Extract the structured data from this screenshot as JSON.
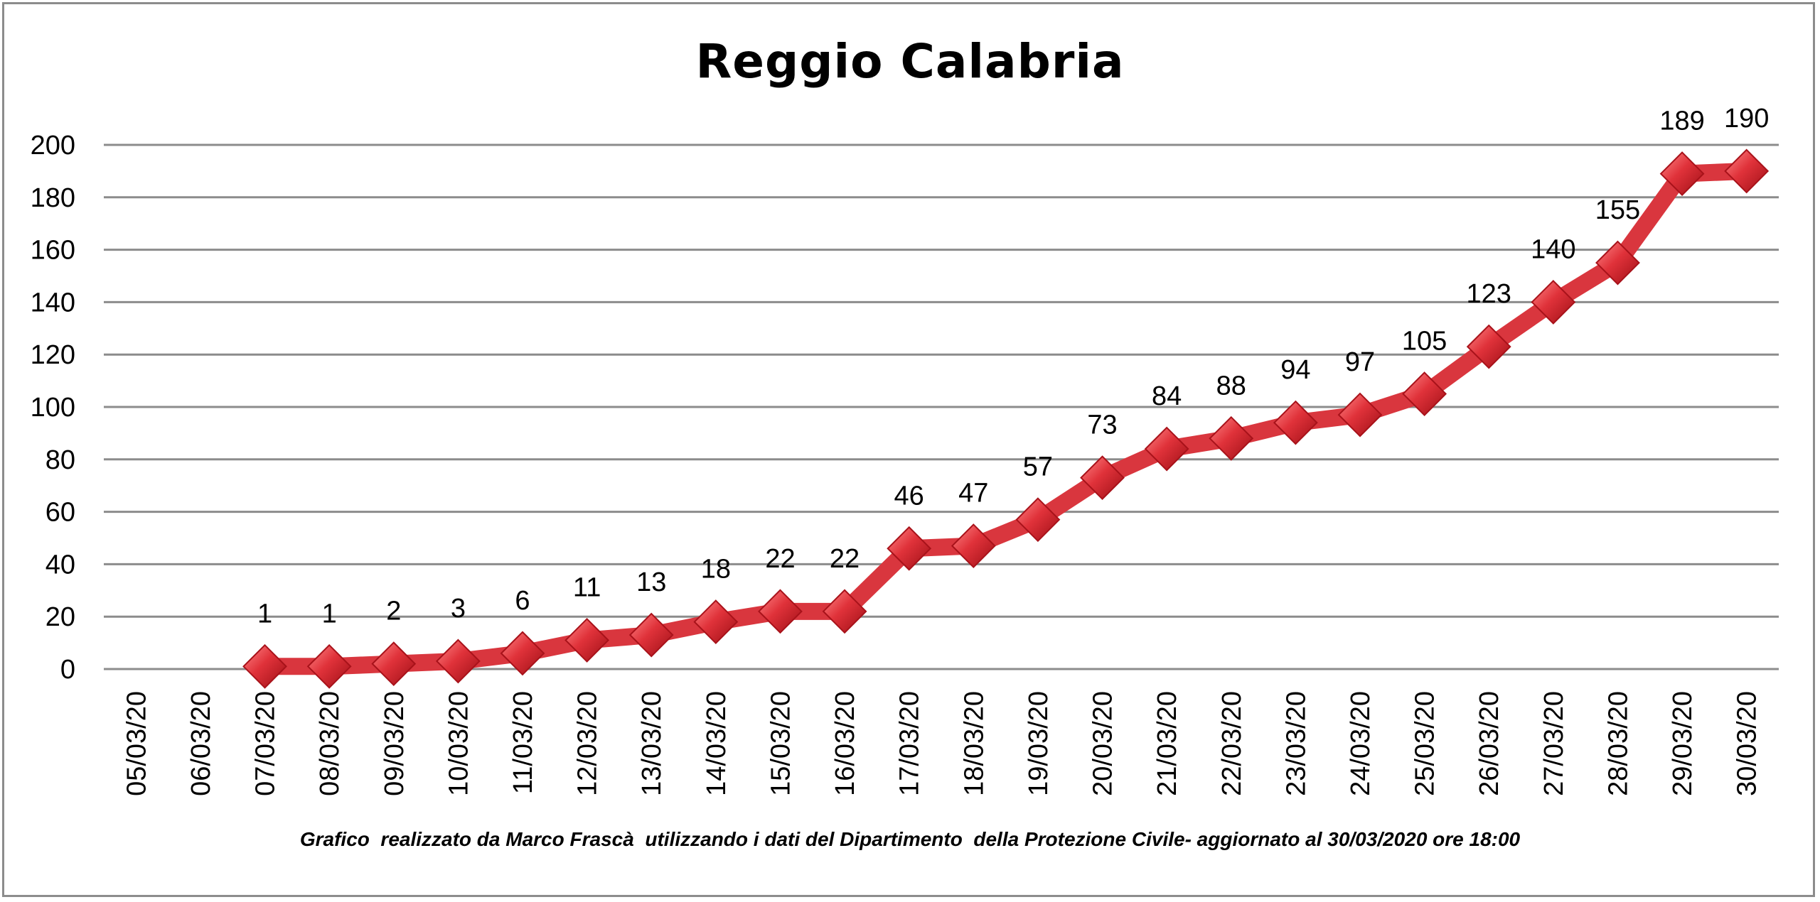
{
  "chart_data": {
    "type": "line",
    "title": "Reggio Calabria",
    "xlabel": "",
    "ylabel": "",
    "ylim": [
      0,
      200
    ],
    "yticks": [
      0,
      20,
      40,
      60,
      80,
      100,
      120,
      140,
      160,
      180,
      200
    ],
    "grid": true,
    "legend": "none",
    "categories": [
      "05/03/20",
      "06/03/20",
      "07/03/20",
      "08/03/20",
      "09/03/20",
      "10/03/20",
      "11/03/20",
      "12/03/20",
      "13/03/20",
      "14/03/20",
      "15/03/20",
      "16/03/20",
      "17/03/20",
      "18/03/20",
      "19/03/20",
      "20/03/20",
      "21/03/20",
      "22/03/20",
      "23/03/20",
      "24/03/20",
      "25/03/20",
      "26/03/20",
      "27/03/20",
      "28/03/20",
      "29/03/20",
      "30/03/20"
    ],
    "series": [
      {
        "values": [
          null,
          null,
          1,
          1,
          2,
          3,
          6,
          11,
          13,
          18,
          22,
          22,
          46,
          47,
          57,
          73,
          84,
          88,
          94,
          97,
          105,
          123,
          140,
          155,
          189,
          190
        ],
        "color": "#d9363e"
      }
    ],
    "data_labels": [
      "",
      "",
      "1",
      "1",
      "2",
      "3",
      "6",
      "11",
      "13",
      "18",
      "22",
      "22",
      "46",
      "47",
      "57",
      "73",
      "84",
      "88",
      "94",
      "97",
      "105",
      "123",
      "140",
      "155",
      "189",
      "190"
    ],
    "annotation": "Grafico  realizzato da Marco Frascà  utilizzando i dati del Dipartimento  della Protezione Civile- aggiornato al 30/03/2020 ore 18:00"
  },
  "colors": {
    "line": "#d9363e",
    "marker": "#e0323a",
    "gridline": "#8c8c8c",
    "frame": "#8c8c8c"
  }
}
